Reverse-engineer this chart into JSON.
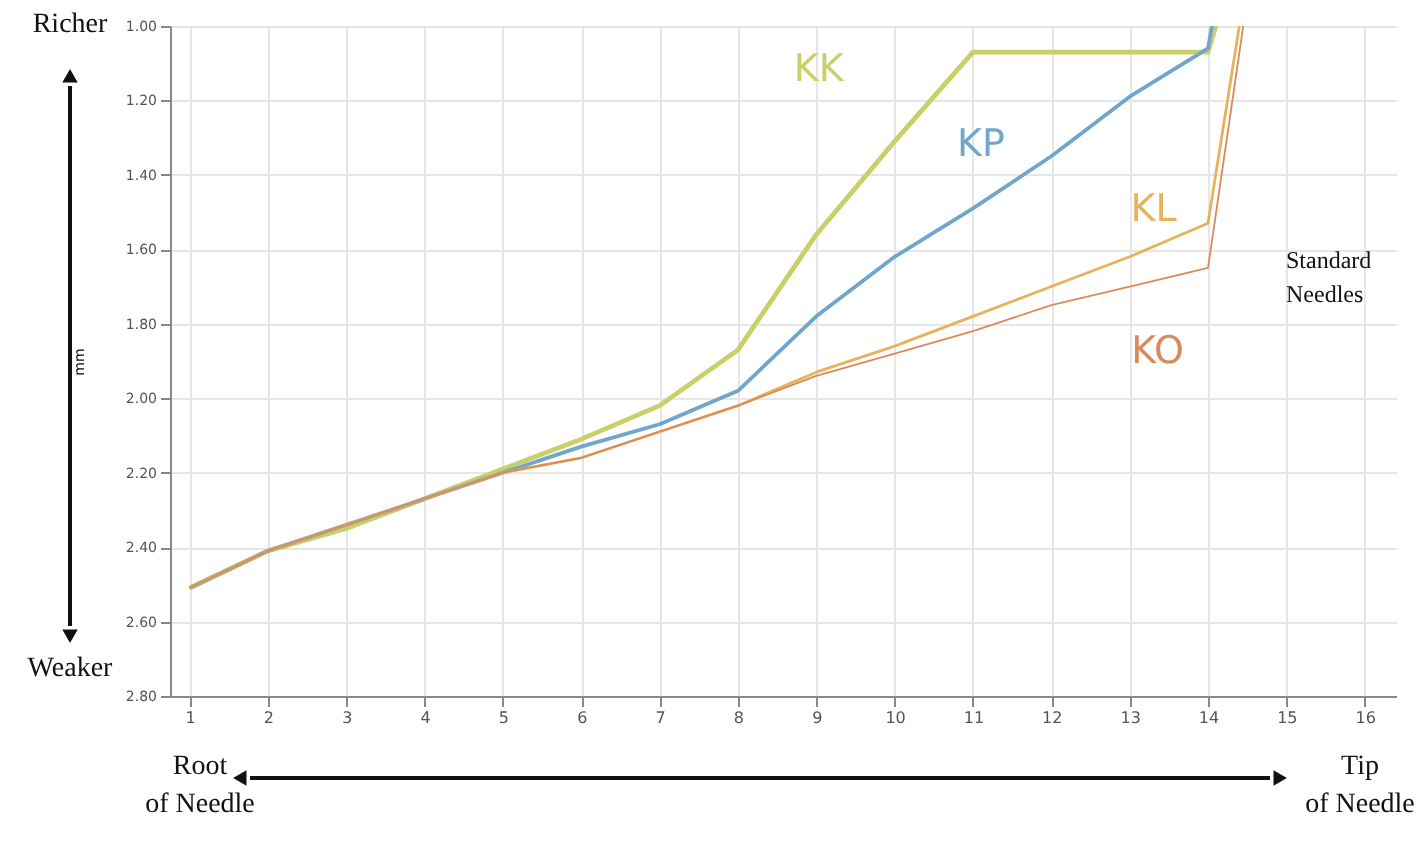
{
  "chart_data": {
    "type": "line",
    "ylabel": "mm",
    "xlim": [
      0.75,
      16.4
    ],
    "xticks": [
      1,
      2,
      3,
      4,
      5,
      6,
      7,
      8,
      9,
      10,
      11,
      12,
      13,
      14,
      15,
      16
    ],
    "ylim": [
      2.8,
      1.0
    ],
    "yticks": [
      {
        "value": 1.0,
        "label": "1.00"
      },
      {
        "value": 1.2,
        "label": "1.20"
      },
      {
        "value": 1.4,
        "label": "1.40"
      },
      {
        "value": 1.6,
        "label": "1.60"
      },
      {
        "value": 1.8,
        "label": "1.80"
      },
      {
        "value": 2.0,
        "label": "2.00"
      },
      {
        "value": 2.2,
        "label": "2.20"
      },
      {
        "value": 2.4,
        "label": "2.40"
      },
      {
        "value": 2.6,
        "label": "2.60"
      },
      {
        "value": 2.8,
        "label": "2.80"
      }
    ],
    "grid": true,
    "marker": "none",
    "line_style": "solid",
    "series": [
      {
        "name": "KK",
        "color": "#c9d06a",
        "x": [
          1,
          2,
          3,
          4,
          5,
          6,
          7,
          8,
          9,
          10,
          11,
          12,
          13,
          14,
          14.1
        ],
        "values": [
          2.51,
          2.41,
          2.35,
          2.27,
          2.19,
          2.11,
          2.02,
          1.87,
          1.56,
          1.31,
          1.07,
          1.07,
          1.07,
          1.07,
          1.0
        ]
      },
      {
        "name": "KP",
        "color": "#6fa6cc",
        "x": [
          1,
          2,
          3,
          4,
          5,
          6,
          7,
          8,
          9,
          10,
          11,
          12,
          13,
          14,
          14.05
        ],
        "values": [
          2.51,
          2.41,
          2.34,
          2.27,
          2.2,
          2.13,
          2.07,
          1.98,
          1.78,
          1.62,
          1.49,
          1.35,
          1.19,
          1.06,
          1.0
        ]
      },
      {
        "name": "KL",
        "color": "#e8b25a",
        "x": [
          1,
          2,
          3,
          4,
          5,
          6,
          7,
          8,
          9,
          10,
          11,
          12,
          13,
          14,
          14.4
        ],
        "values": [
          2.51,
          2.41,
          2.34,
          2.27,
          2.2,
          2.16,
          2.09,
          2.02,
          1.93,
          1.86,
          1.78,
          1.7,
          1.62,
          1.53,
          1.0
        ]
      },
      {
        "name": "KO",
        "color": "#d98a5a",
        "x": [
          1,
          2,
          3,
          4,
          5,
          6,
          7,
          8,
          9,
          10,
          11,
          12,
          13,
          14,
          14.45
        ],
        "values": [
          2.51,
          2.41,
          2.34,
          2.27,
          2.2,
          2.16,
          2.09,
          2.02,
          1.94,
          1.88,
          1.82,
          1.75,
          1.7,
          1.65,
          1.0
        ]
      }
    ],
    "annotations": [
      "Richer",
      "Weaker",
      "Root\nof Needle",
      "Tip\nof Needle",
      "Standard\nNeedles"
    ]
  }
}
